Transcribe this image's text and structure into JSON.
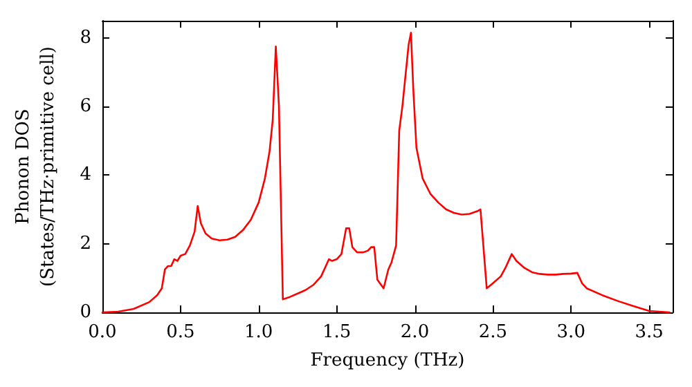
{
  "chart_data": {
    "type": "line",
    "xlabel": "Frequency (THz)",
    "ylabel": "Phonon DOS\n(States/THz·primitive cell)",
    "xlim": [
      0,
      3.65
    ],
    "xticks": [
      {
        "value": 0,
        "label": "0.0"
      },
      {
        "value": 0.5,
        "label": "0.5"
      },
      {
        "value": 1,
        "label": "1.0"
      },
      {
        "value": 1.5,
        "label": "1.5"
      },
      {
        "value": 2,
        "label": "2.0"
      },
      {
        "value": 2.5,
        "label": "2.5"
      },
      {
        "value": 3,
        "label": "3.0"
      },
      {
        "value": 3.5,
        "label": "3.5"
      }
    ],
    "ylim": [
      0,
      8.5
    ],
    "yticks": [
      0,
      2,
      4,
      6,
      8
    ],
    "grid": false,
    "marker": "none",
    "line_style": "solid",
    "series": [
      {
        "color": "#ff0000",
        "x": [
          0,
          0.1,
          0.2,
          0.3,
          0.35,
          0.38,
          0.4,
          0.42,
          0.44,
          0.46,
          0.48,
          0.5,
          0.53,
          0.56,
          0.59,
          0.61,
          0.63,
          0.66,
          0.7,
          0.75,
          0.8,
          0.85,
          0.9,
          0.95,
          1.0,
          1.04,
          1.07,
          1.09,
          1.11,
          1.13,
          1.155,
          1.2,
          1.25,
          1.3,
          1.35,
          1.4,
          1.43,
          1.45,
          1.47,
          1.5,
          1.53,
          1.56,
          1.58,
          1.6,
          1.63,
          1.67,
          1.7,
          1.72,
          1.74,
          1.76,
          1.8,
          1.83,
          1.85,
          1.88,
          1.9,
          1.92,
          1.96,
          1.975,
          1.99,
          2.01,
          2.05,
          2.1,
          2.15,
          2.2,
          2.25,
          2.3,
          2.35,
          2.4,
          2.42,
          2.46,
          2.5,
          2.55,
          2.58,
          2.62,
          2.65,
          2.7,
          2.75,
          2.8,
          2.85,
          2.9,
          2.95,
          3.0,
          3.04,
          3.07,
          3.1,
          3.2,
          3.3,
          3.4,
          3.5,
          3.63
        ],
        "values": [
          0,
          0.02,
          0.1,
          0.3,
          0.5,
          0.7,
          1.25,
          1.35,
          1.35,
          1.55,
          1.5,
          1.65,
          1.7,
          1.95,
          2.35,
          3.1,
          2.6,
          2.3,
          2.15,
          2.1,
          2.12,
          2.2,
          2.4,
          2.7,
          3.2,
          3.9,
          4.7,
          5.6,
          7.75,
          6.0,
          0.38,
          0.45,
          0.55,
          0.65,
          0.8,
          1.05,
          1.35,
          1.55,
          1.5,
          1.55,
          1.7,
          2.45,
          2.45,
          1.9,
          1.75,
          1.75,
          1.8,
          1.9,
          1.9,
          0.95,
          0.7,
          1.25,
          1.45,
          1.95,
          5.3,
          6.0,
          7.8,
          8.15,
          6.5,
          4.8,
          3.9,
          3.45,
          3.2,
          3.0,
          2.9,
          2.85,
          2.87,
          2.95,
          3.0,
          0.7,
          0.85,
          1.05,
          1.3,
          1.7,
          1.5,
          1.3,
          1.17,
          1.12,
          1.1,
          1.1,
          1.12,
          1.13,
          1.15,
          0.85,
          0.7,
          0.5,
          0.33,
          0.18,
          0.04,
          0
        ]
      }
    ]
  }
}
